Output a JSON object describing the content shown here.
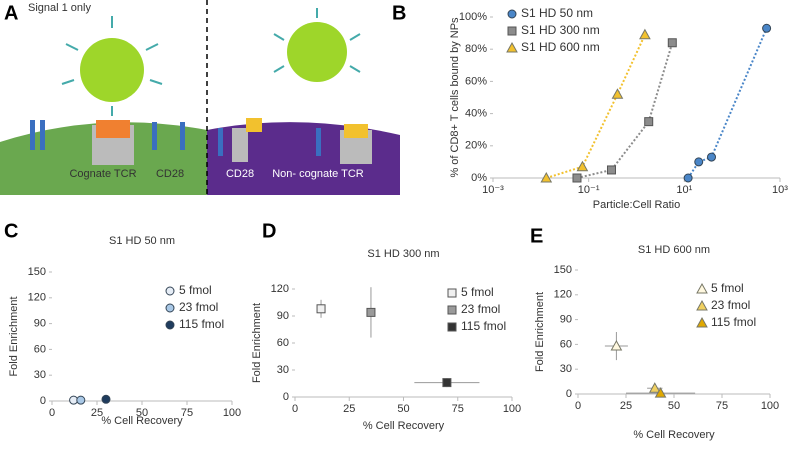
{
  "panel_labels": [
    "A",
    "B",
    "C",
    "D",
    "E"
  ],
  "diagram": {
    "title": "Signal 1 only",
    "labels": [
      "Cognate TCR",
      "CD28",
      "CD28",
      "Non- cognate TCR"
    ]
  },
  "chart_data": [
    {
      "type": "line",
      "x_label": "Particle:Cell Ratio",
      "y_label": "% of CD8+ T cells bound by NPs",
      "log_x": true,
      "line_style": "dotted",
      "xlim": [
        0.001,
        1000
      ],
      "xticks": [
        {
          "value": 0.001,
          "label": "10⁻³"
        },
        {
          "value": 0.1,
          "label": "10⁻¹"
        },
        {
          "value": 10,
          "label": "10¹"
        },
        {
          "value": 1000,
          "label": "10³"
        }
      ],
      "ylim": [
        0,
        100
      ],
      "yticks": [
        {
          "value": 0,
          "label": "0%"
        },
        {
          "value": 20,
          "label": "20%"
        },
        {
          "value": 40,
          "label": "40%"
        },
        {
          "value": 60,
          "label": "60%"
        },
        {
          "value": 80,
          "label": "80%"
        },
        {
          "value": 100,
          "label": "100%"
        }
      ],
      "series": [
        {
          "name": "S1 HD 50 nm",
          "color": "#4a86c8",
          "marker": "circle",
          "x": [
            12,
            20,
            37,
            525
          ],
          "y": [
            0,
            10,
            13,
            93
          ]
        },
        {
          "name": "S1 HD 300 nm",
          "color": "#8c8c8c",
          "marker": "square",
          "x": [
            0.057,
            0.3,
            1.8,
            5.6
          ],
          "y": [
            0,
            5,
            35,
            84
          ]
        },
        {
          "name": "S1 HD 600 nm",
          "color": "#f2c12e",
          "marker": "triangle",
          "x": [
            0.013,
            0.074,
            0.4,
            1.5
          ],
          "y": [
            0,
            7,
            52,
            89
          ]
        }
      ]
    },
    {
      "type": "scatter",
      "title": "S1 HD 50 nm",
      "x_label": "% Cell Recovery",
      "y_label": "Fold Enrichment",
      "xlim": [
        0,
        100
      ],
      "xticks": [
        0,
        25,
        50,
        75,
        100
      ],
      "ylim": [
        0,
        150
      ],
      "yticks": [
        0,
        30,
        60,
        90,
        120,
        150
      ],
      "series": [
        {
          "name": "5 fmol",
          "color": "#e6edf6",
          "marker": "circle",
          "x": [
            12
          ],
          "y": [
            1
          ]
        },
        {
          "name": "23 fmol",
          "color": "#a9c8e6",
          "marker": "circle",
          "x": [
            16
          ],
          "y": [
            1
          ]
        },
        {
          "name": "115 fmol",
          "color": "#1f3c5e",
          "marker": "circle",
          "x": [
            30
          ],
          "y": [
            2
          ]
        }
      ]
    },
    {
      "type": "scatter",
      "title": "S1 HD 300 nm",
      "x_label": "% Cell Recovery",
      "y_label": "Fold Enrichment",
      "xlim": [
        0,
        100
      ],
      "xticks": [
        0,
        25,
        50,
        75,
        100
      ],
      "ylim": [
        0,
        120
      ],
      "yticks": [
        0,
        30,
        60,
        90,
        120
      ],
      "series": [
        {
          "name": "5 fmol",
          "color": "#f0f0f0",
          "marker": "square",
          "x": [
            12
          ],
          "y": [
            98
          ],
          "x_errors": [
            1
          ],
          "y_errors": [
            10
          ]
        },
        {
          "name": "23 fmol",
          "color": "#9a9a9a",
          "marker": "square",
          "x": [
            35
          ],
          "y": [
            94
          ],
          "x_errors": [
            1
          ],
          "y_errors": [
            28
          ]
        },
        {
          "name": "115 fmol",
          "color": "#333333",
          "marker": "square",
          "x": [
            70
          ],
          "y": [
            16
          ],
          "x_errors": [
            15
          ],
          "y_errors": [
            5
          ]
        }
      ]
    },
    {
      "type": "scatter",
      "title": "S1 HD 600 nm",
      "x_label": "% Cell Recovery",
      "y_label": "Fold Enrichment",
      "xlim": [
        0,
        100
      ],
      "xticks": [
        0,
        25,
        50,
        75,
        100
      ],
      "ylim": [
        0,
        150
      ],
      "yticks": [
        0,
        30,
        60,
        90,
        120,
        150
      ],
      "series": [
        {
          "name": "5 fmol",
          "color": "#fff8e0",
          "marker": "triangle",
          "x": [
            20
          ],
          "y": [
            58
          ],
          "x_errors": [
            6
          ],
          "y_errors": [
            17
          ]
        },
        {
          "name": "23 fmol",
          "color": "#f0d060",
          "marker": "triangle",
          "x": [
            40
          ],
          "y": [
            7
          ],
          "x_errors": [
            4
          ],
          "y_errors": [
            3
          ]
        },
        {
          "name": "115 fmol",
          "color": "#e0a800",
          "marker": "triangle",
          "x": [
            43
          ],
          "y": [
            1
          ],
          "x_errors": [
            18
          ],
          "y_errors": [
            1
          ]
        }
      ]
    }
  ]
}
